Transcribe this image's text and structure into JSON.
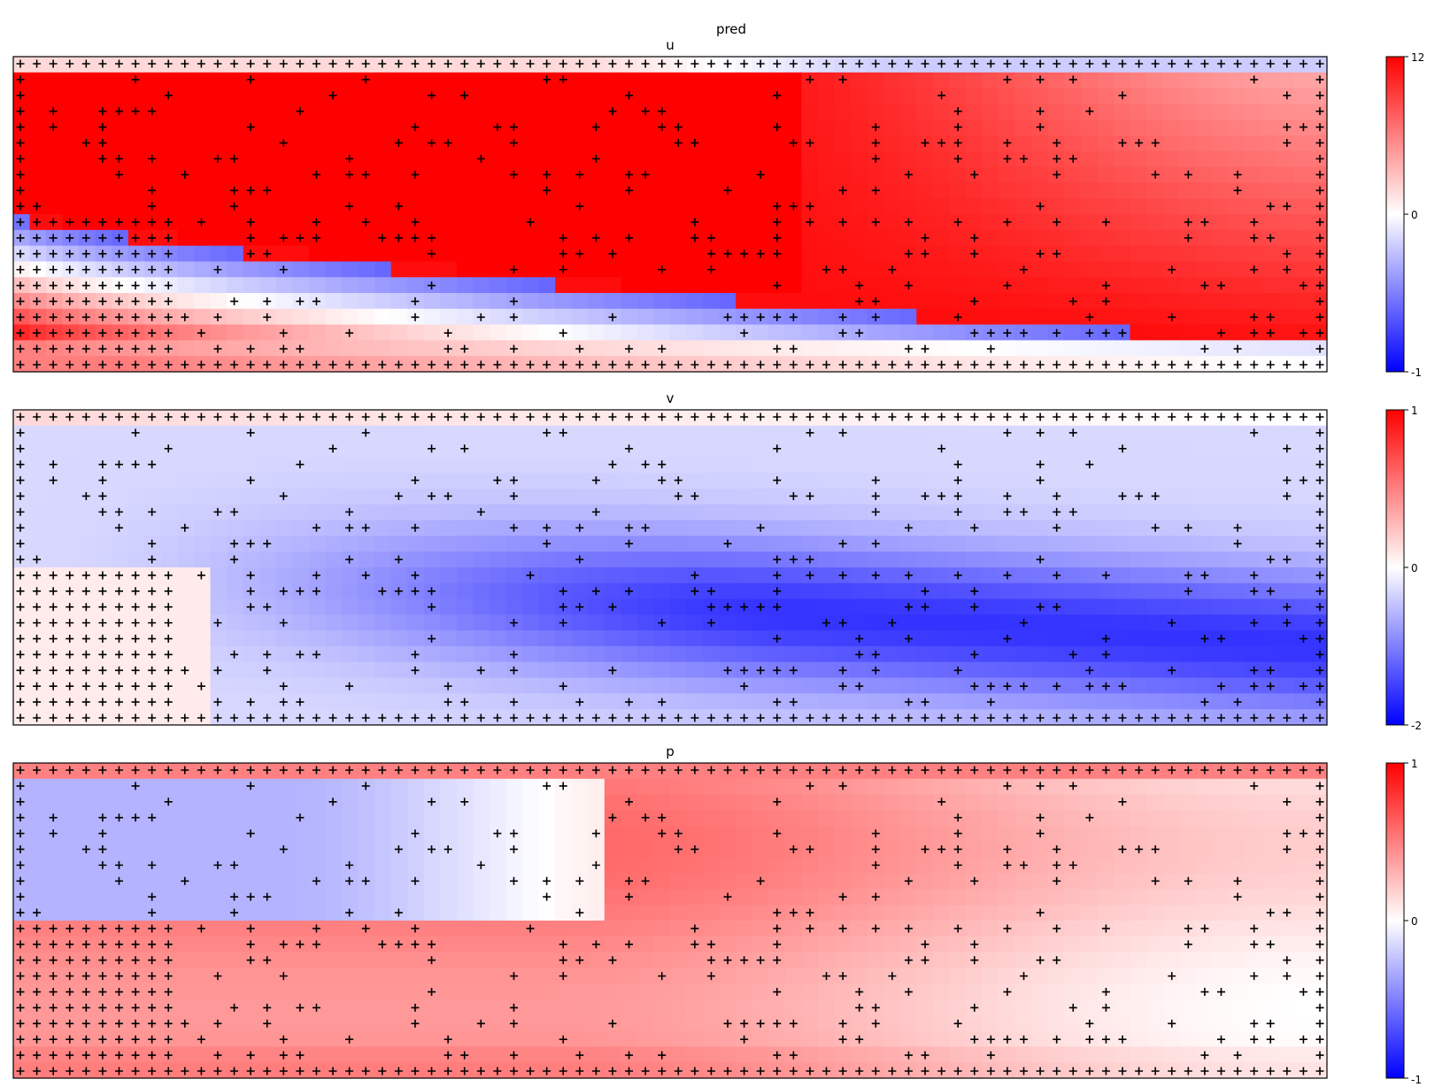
{
  "figure_title": "pred",
  "colors": {
    "low": "#0000ff",
    "mid": "#ffffff",
    "high": "#ff0000",
    "marker": "#000000"
  },
  "chart_data": [
    {
      "type": "heatmap",
      "title": "u",
      "field": "u",
      "colorbar_ticks": [
        "12",
        "0",
        "-1"
      ],
      "colorbar_range": [
        -1,
        12
      ],
      "grid": {
        "rows": 20,
        "cols": 80
      },
      "markers": "+"
    },
    {
      "type": "heatmap",
      "title": "v",
      "field": "v",
      "colorbar_ticks": [
        "1",
        "0",
        "-2"
      ],
      "colorbar_range": [
        -2,
        1
      ],
      "grid": {
        "rows": 20,
        "cols": 80
      },
      "markers": "+"
    },
    {
      "type": "heatmap",
      "title": "p",
      "field": "p",
      "colorbar_ticks": [
        "1",
        "0",
        "-1"
      ],
      "colorbar_range": [
        -1,
        1
      ],
      "grid": {
        "rows": 20,
        "cols": 80
      },
      "markers": "+"
    }
  ]
}
